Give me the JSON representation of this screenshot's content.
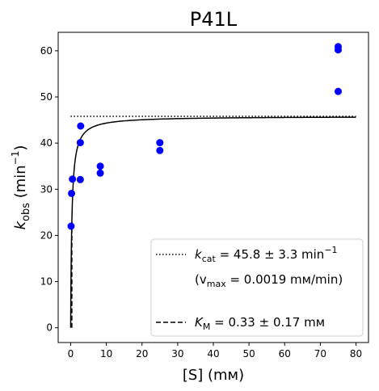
{
  "chart_data": {
    "type": "scatter",
    "title": "P41L",
    "xlabel": "[S] (mм)",
    "ylabel_main": "k",
    "ylabel_sub": "obs",
    "ylabel_unit": " (min",
    "ylabel_unit_sup": "−1",
    "ylabel_close": ")",
    "xlim": [
      -3.5,
      83.5
    ],
    "ylim": [
      -3.2,
      64
    ],
    "xticks": [
      0,
      10,
      20,
      30,
      40,
      50,
      60,
      70,
      80
    ],
    "yticks": [
      0,
      10,
      20,
      30,
      40,
      50,
      60
    ],
    "grid": false,
    "legend_placement": "lower-right",
    "point_color": "#0000ff",
    "points": [
      {
        "x": 0.12,
        "y": 22.0
      },
      {
        "x": 0.25,
        "y": 29.1
      },
      {
        "x": 0.5,
        "y": 32.2
      },
      {
        "x": 2.7,
        "y": 32.1
      },
      {
        "x": 2.7,
        "y": 40.1
      },
      {
        "x": 2.8,
        "y": 43.7
      },
      {
        "x": 8.3,
        "y": 35.0
      },
      {
        "x": 8.3,
        "y": 33.5
      },
      {
        "x": 25.0,
        "y": 40.1
      },
      {
        "x": 25.0,
        "y": 38.4
      },
      {
        "x": 75.0,
        "y": 60.9
      },
      {
        "x": 75.0,
        "y": 60.2
      },
      {
        "x": 75.0,
        "y": 51.2
      }
    ],
    "kcat": 45.8,
    "km": 0.33,
    "fit_x_range": [
      0,
      80
    ],
    "legend": {
      "kcat_main": "k",
      "kcat_sub": "cat",
      "kcat_text": " = 45.8 ± 3.3 min",
      "kcat_sup": "−1",
      "vmax_open": "(v",
      "vmax_sub": "max",
      "vmax_text": " = 0.0019 mм/min)",
      "km_main": "K",
      "km_sub": "M",
      "km_text": " = 0.33 ± 0.17 mм"
    }
  }
}
